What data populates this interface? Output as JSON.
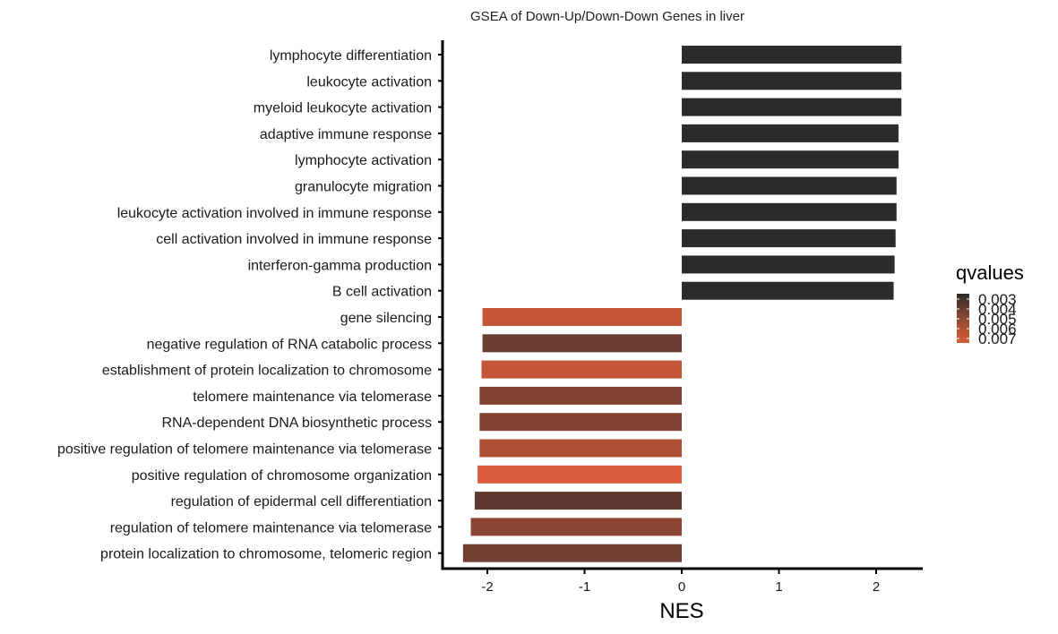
{
  "chart_data": {
    "type": "bar",
    "orientation": "horizontal",
    "title": "GSEA of Down-Up/Down-Down Genes in liver",
    "xlabel": "NES",
    "ylabel": "",
    "xlim": [
      -2.5,
      2.5
    ],
    "x_ticks": [
      "-2",
      "-1",
      "0",
      "1",
      "2"
    ],
    "grid": false,
    "legend": {
      "title": "qvalues",
      "placement": "right",
      "labels": [
        "0.003",
        "0.004",
        "0.005",
        "0.006",
        "0.007"
      ],
      "colors": [
        "#2b2b2b",
        "#5e3a2f",
        "#8c4a33",
        "#b55435",
        "#d95b3a"
      ]
    },
    "categories": [
      "lymphocyte differentiation",
      "leukocyte activation",
      "myeloid leukocyte activation",
      "adaptive immune response",
      "lymphocyte activation",
      "granulocyte migration",
      "leukocyte activation involved in immune response",
      "cell activation involved in immune response",
      "interferon-gamma production",
      "B cell activation",
      "gene silencing",
      "negative regulation of RNA catabolic process",
      "establishment of protein localization to chromosome",
      "telomere maintenance via telomerase",
      "RNA-dependent DNA biosynthetic process",
      "positive regulation of telomere maintenance via telomerase",
      "positive regulation of chromosome organization",
      "regulation of epidermal cell differentiation",
      "regulation of telomere maintenance via telomerase",
      "protein localization to chromosome, telomeric region"
    ],
    "values": [
      2.26,
      2.26,
      2.26,
      2.23,
      2.23,
      2.21,
      2.21,
      2.2,
      2.19,
      2.18,
      -2.05,
      -2.05,
      -2.06,
      -2.08,
      -2.08,
      -2.08,
      -2.1,
      -2.13,
      -2.17,
      -2.25
    ],
    "qvalues": [
      0.003,
      0.003,
      0.003,
      0.003,
      0.003,
      0.003,
      0.003,
      0.003,
      0.003,
      0.003,
      0.0065,
      0.0045,
      0.0065,
      0.005,
      0.005,
      0.006,
      0.007,
      0.0042,
      0.0052,
      0.0046
    ]
  }
}
